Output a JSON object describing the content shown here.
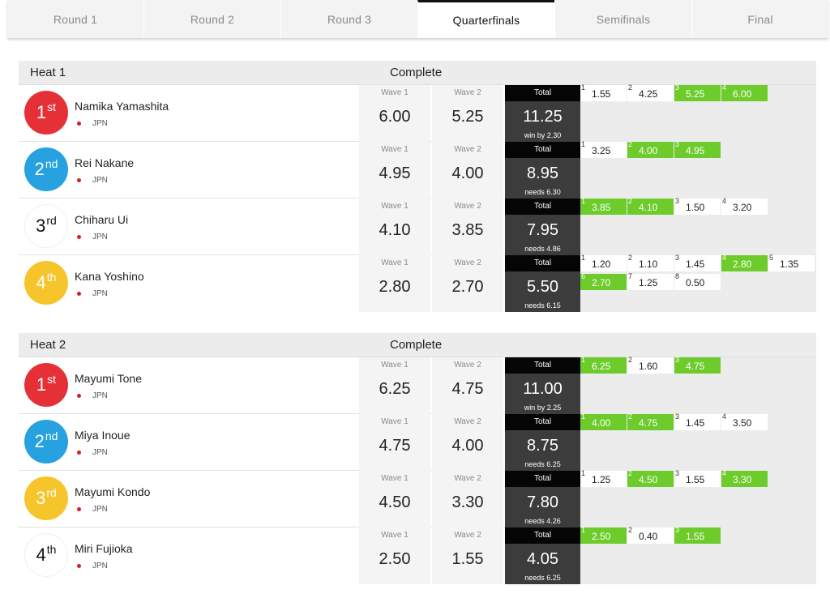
{
  "tabs": [
    "Round 1",
    "Round 2",
    "Round 3",
    "Quarterfinals",
    "Semifinals",
    "Final"
  ],
  "active_tab": "Quarterfinals",
  "colors": {
    "gold": "#e63038",
    "blue": "#27a1e0",
    "yellow": "#f6c52c",
    "white": "#ffffff",
    "highlight": "#6dcb2b"
  },
  "heats": [
    {
      "name": "Heat 1",
      "status": "Complete",
      "athletes": [
        {
          "rank_num": "1",
          "rank_suffix": "st",
          "color": "#e63038",
          "name": "Namika Yamashita",
          "country": "JPN",
          "wave1_label": "Wave 1",
          "wave1": "6.00",
          "wave2_label": "Wave 2",
          "wave2": "5.25",
          "total_label": "Total",
          "total": "11.25",
          "note": "win by 2.30",
          "waves": [
            {
              "n": "1",
              "v": "1.55",
              "hi": false
            },
            {
              "n": "2",
              "v": "4.25",
              "hi": false
            },
            {
              "n": "3",
              "v": "5.25",
              "hi": true
            },
            {
              "n": "4",
              "v": "6.00",
              "hi": true
            }
          ]
        },
        {
          "rank_num": "2",
          "rank_suffix": "nd",
          "color": "#27a1e0",
          "name": "Rei Nakane",
          "country": "JPN",
          "wave1_label": "Wave 1",
          "wave1": "4.95",
          "wave2_label": "Wave 2",
          "wave2": "4.00",
          "total_label": "Total",
          "total": "8.95",
          "note": "needs 6.30",
          "waves": [
            {
              "n": "1",
              "v": "3.25",
              "hi": false
            },
            {
              "n": "2",
              "v": "4.00",
              "hi": true
            },
            {
              "n": "3",
              "v": "4.95",
              "hi": true
            }
          ]
        },
        {
          "rank_num": "3",
          "rank_suffix": "rd",
          "color": "#ffffff",
          "name": "Chiharu Ui",
          "country": "JPN",
          "wave1_label": "Wave 1",
          "wave1": "4.10",
          "wave2_label": "Wave 2",
          "wave2": "3.85",
          "total_label": "Total",
          "total": "7.95",
          "note": "needs 4.86",
          "waves": [
            {
              "n": "1",
              "v": "3.85",
              "hi": true
            },
            {
              "n": "2",
              "v": "4.10",
              "hi": true
            },
            {
              "n": "3",
              "v": "1.50",
              "hi": false
            },
            {
              "n": "4",
              "v": "3.20",
              "hi": false
            }
          ]
        },
        {
          "rank_num": "4",
          "rank_suffix": "th",
          "color": "#f6c52c",
          "name": "Kana Yoshino",
          "country": "JPN",
          "wave1_label": "Wave 1",
          "wave1": "2.80",
          "wave2_label": "Wave 2",
          "wave2": "2.70",
          "total_label": "Total",
          "total": "5.50",
          "note": "needs 6.15",
          "waves": [
            {
              "n": "1",
              "v": "1.20",
              "hi": false
            },
            {
              "n": "2",
              "v": "1.10",
              "hi": false
            },
            {
              "n": "3",
              "v": "1.45",
              "hi": false
            },
            {
              "n": "4",
              "v": "2.80",
              "hi": true
            },
            {
              "n": "5",
              "v": "1.35",
              "hi": false
            },
            {
              "n": "6",
              "v": "2.70",
              "hi": true
            },
            {
              "n": "7",
              "v": "1.25",
              "hi": false
            },
            {
              "n": "8",
              "v": "0.50",
              "hi": false
            }
          ]
        }
      ]
    },
    {
      "name": "Heat 2",
      "status": "Complete",
      "athletes": [
        {
          "rank_num": "1",
          "rank_suffix": "st",
          "color": "#e63038",
          "name": "Mayumi Tone",
          "country": "JPN",
          "wave1_label": "Wave 1",
          "wave1": "6.25",
          "wave2_label": "Wave 2",
          "wave2": "4.75",
          "total_label": "Total",
          "total": "11.00",
          "note": "win by 2.25",
          "waves": [
            {
              "n": "1",
              "v": "6.25",
              "hi": true
            },
            {
              "n": "2",
              "v": "1.60",
              "hi": false
            },
            {
              "n": "3",
              "v": "4.75",
              "hi": true
            }
          ]
        },
        {
          "rank_num": "2",
          "rank_suffix": "nd",
          "color": "#27a1e0",
          "name": "Miya Inoue",
          "country": "JPN",
          "wave1_label": "Wave 1",
          "wave1": "4.75",
          "wave2_label": "Wave 2",
          "wave2": "4.00",
          "total_label": "Total",
          "total": "8.75",
          "note": "needs 6.25",
          "waves": [
            {
              "n": "1",
              "v": "4.00",
              "hi": true
            },
            {
              "n": "2",
              "v": "4.75",
              "hi": true
            },
            {
              "n": "3",
              "v": "1.45",
              "hi": false
            },
            {
              "n": "4",
              "v": "3.50",
              "hi": false
            }
          ]
        },
        {
          "rank_num": "3",
          "rank_suffix": "rd",
          "color": "#f6c52c",
          "name": "Mayumi Kondo",
          "country": "JPN",
          "wave1_label": "Wave 1",
          "wave1": "4.50",
          "wave2_label": "Wave 2",
          "wave2": "3.30",
          "total_label": "Total",
          "total": "7.80",
          "note": "needs 4.26",
          "waves": [
            {
              "n": "1",
              "v": "1.25",
              "hi": false
            },
            {
              "n": "2",
              "v": "4.50",
              "hi": true
            },
            {
              "n": "3",
              "v": "1.55",
              "hi": false
            },
            {
              "n": "4",
              "v": "3.30",
              "hi": true
            }
          ]
        },
        {
          "rank_num": "4",
          "rank_suffix": "th",
          "color": "#ffffff",
          "name": "Miri Fujioka",
          "country": "JPN",
          "wave1_label": "Wave 1",
          "wave1": "2.50",
          "wave2_label": "Wave 2",
          "wave2": "1.55",
          "total_label": "Total",
          "total": "4.05",
          "note": "needs 6.25",
          "waves": [
            {
              "n": "1",
              "v": "2.50",
              "hi": true
            },
            {
              "n": "2",
              "v": "0.40",
              "hi": false
            },
            {
              "n": "3",
              "v": "1.55",
              "hi": true
            }
          ]
        }
      ]
    }
  ]
}
